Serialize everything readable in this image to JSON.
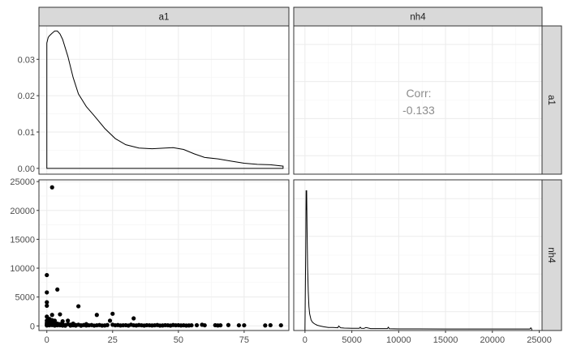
{
  "chart_data": {
    "type": "pairs-plot",
    "variables": [
      "a1",
      "nh4"
    ],
    "strips": {
      "top": [
        "a1",
        "nh4"
      ],
      "right": [
        "a1",
        "nh4"
      ]
    },
    "correlation": {
      "label": "Corr:",
      "value": "-0.133"
    },
    "panels": {
      "density_a1": {
        "type": "line",
        "x_ticks": [
          0,
          25,
          50,
          75
        ],
        "y_ticks": [
          0.0,
          0.01,
          0.02,
          0.03
        ],
        "y_tick_labels": [
          "0.00",
          "0.01",
          "0.02",
          "0.03"
        ],
        "xlim": [
          -3,
          92
        ],
        "ylim": [
          -0.0016,
          0.0392
        ],
        "x": [
          0,
          0.5,
          1,
          2,
          3,
          4,
          5,
          6,
          8,
          10,
          12,
          15,
          18,
          22,
          26,
          30,
          35,
          40,
          45,
          48,
          52,
          56,
          60,
          65,
          70,
          75,
          80,
          85,
          89.8
        ],
        "y": [
          0.0345,
          0.036,
          0.0365,
          0.0372,
          0.0378,
          0.0378,
          0.037,
          0.0355,
          0.0308,
          0.025,
          0.0205,
          0.017,
          0.0145,
          0.011,
          0.0082,
          0.0065,
          0.0056,
          0.0054,
          0.0056,
          0.0057,
          0.0052,
          0.004,
          0.003,
          0.0026,
          0.002,
          0.0014,
          0.0011,
          0.001,
          0.0006
        ]
      },
      "density_nh4": {
        "type": "line",
        "x_ticks": [
          0,
          5000,
          10000,
          15000,
          20000,
          25000
        ],
        "xlim": [
          -1200,
          25300
        ],
        "ylim": [
          0,
          1
        ],
        "x": [
          0,
          80,
          120,
          150,
          180,
          220,
          280,
          350,
          420,
          500,
          650,
          800,
          1000,
          1300,
          1600,
          2000,
          2500,
          3000,
          3500,
          3600,
          3800,
          4200,
          5000,
          5800,
          5900,
          6000,
          6300,
          6500,
          7000,
          8000,
          8800,
          8900,
          9000,
          10000,
          12000,
          15000,
          18000,
          20000,
          23000,
          24000,
          24100,
          24200
        ],
        "y": [
          0.02,
          0.55,
          0.93,
          0.8,
          0.93,
          0.68,
          0.42,
          0.26,
          0.16,
          0.11,
          0.07,
          0.055,
          0.045,
          0.035,
          0.03,
          0.025,
          0.02,
          0.02,
          0.018,
          0.03,
          0.018,
          0.016,
          0.015,
          0.015,
          0.022,
          0.015,
          0.014,
          0.02,
          0.013,
          0.013,
          0.013,
          0.022,
          0.012,
          0.011,
          0.011,
          0.01,
          0.01,
          0.01,
          0.01,
          0.01,
          0.018,
          0.01
        ]
      },
      "scatter_a1_nh4": {
        "type": "scatter",
        "x_ticks": [
          0,
          25,
          50,
          75
        ],
        "y_ticks": [
          0,
          5000,
          10000,
          15000,
          20000,
          25000
        ],
        "xlim": [
          -3,
          92
        ],
        "ylim": [
          -800,
          25300
        ],
        "x": [
          0,
          0,
          0,
          0,
          0,
          0,
          0,
          0,
          0,
          1,
          1,
          1,
          1,
          2,
          2,
          2,
          2,
          2,
          3,
          3,
          3,
          3,
          3,
          4,
          4,
          4,
          5,
          5,
          5,
          6,
          6,
          6,
          7,
          7,
          8,
          8,
          9,
          9,
          10,
          10,
          11,
          11,
          12,
          12,
          13,
          13,
          14,
          15,
          15,
          16,
          17,
          18,
          19,
          19,
          20,
          21,
          22,
          23,
          24,
          25,
          25,
          26,
          27,
          28,
          29,
          30,
          31,
          32,
          33,
          33,
          34,
          35,
          36,
          37,
          38,
          39,
          40,
          41,
          42,
          43,
          44,
          45,
          46,
          47,
          48,
          49,
          50,
          51,
          52,
          53,
          54,
          55,
          57,
          59,
          60,
          64,
          65,
          66,
          69,
          73,
          75,
          83,
          85,
          89
        ],
        "y": [
          8800,
          5800,
          4100,
          3500,
          1600,
          900,
          500,
          250,
          80,
          1200,
          600,
          300,
          100,
          24000,
          1900,
          1000,
          400,
          150,
          900,
          600,
          300,
          150,
          50,
          6300,
          400,
          100,
          2000,
          300,
          100,
          800,
          250,
          50,
          150,
          40,
          900,
          300,
          200,
          60,
          400,
          100,
          150,
          50,
          3400,
          200,
          100,
          30,
          150,
          300,
          80,
          100,
          150,
          50,
          1900,
          100,
          150,
          60,
          80,
          150,
          900,
          2100,
          200,
          100,
          150,
          80,
          100,
          120,
          60,
          200,
          1300,
          100,
          80,
          150,
          100,
          60,
          120,
          100,
          80,
          100,
          150,
          60,
          80,
          120,
          100,
          60,
          150,
          100,
          120,
          80,
          100,
          60,
          80,
          100,
          120,
          200,
          100,
          120,
          80,
          100,
          150,
          100,
          100,
          80,
          120,
          100
        ]
      }
    }
  }
}
